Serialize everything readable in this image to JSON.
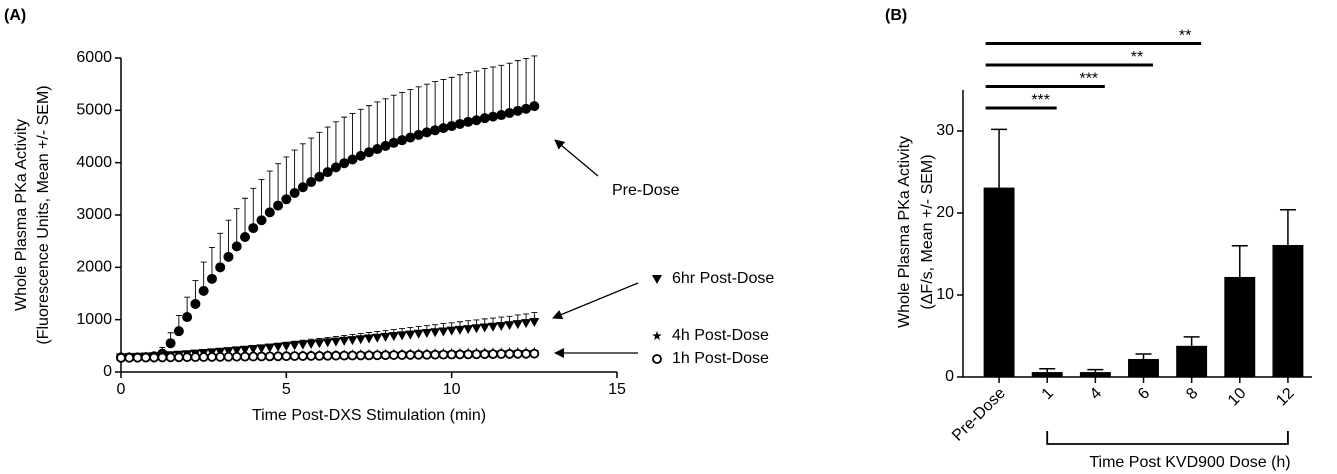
{
  "chart_data": [
    {
      "type": "scatter",
      "panel_label": "(A)",
      "xlabel": "Time Post-DXS Stimulation (min)",
      "ylabel": [
        "Whole Plasma PKa Activity",
        "(Fluorescence Units, Mean +/- SEM)"
      ],
      "xlim": [
        0,
        15
      ],
      "xticks": [
        0,
        5,
        10,
        15
      ],
      "ylim": [
        0,
        6000
      ],
      "yticks": [
        0,
        1000,
        2000,
        3000,
        4000,
        5000,
        6000
      ],
      "x": [
        0,
        0.25,
        0.5,
        0.75,
        1,
        1.25,
        1.5,
        1.75,
        2,
        2.25,
        2.5,
        2.75,
        3,
        3.25,
        3.5,
        3.75,
        4,
        4.25,
        4.5,
        4.75,
        5,
        5.25,
        5.5,
        5.75,
        6,
        6.25,
        6.5,
        6.75,
        7,
        7.25,
        7.5,
        7.75,
        8,
        8.25,
        8.5,
        8.75,
        9,
        9.25,
        9.5,
        9.75,
        10,
        10.25,
        10.5,
        10.75,
        11,
        11.25,
        11.5,
        11.75,
        12,
        12.25,
        12.5
      ],
      "series": [
        {
          "name": "Pre-Dose",
          "color": "#000000",
          "marker": "circle",
          "values": [
            280,
            280,
            280,
            285,
            300,
            350,
            550,
            780,
            1050,
            1300,
            1550,
            1780,
            2000,
            2200,
            2400,
            2580,
            2750,
            2900,
            3050,
            3180,
            3300,
            3420,
            3530,
            3630,
            3730,
            3820,
            3910,
            3990,
            4060,
            4130,
            4200,
            4260,
            4320,
            4380,
            4430,
            4480,
            4530,
            4580,
            4620,
            4660,
            4700,
            4740,
            4780,
            4810,
            4850,
            4880,
            4910,
            4950,
            4990,
            5030,
            5080
          ],
          "errors": [
            20,
            20,
            20,
            30,
            60,
            120,
            200,
            300,
            380,
            450,
            550,
            600,
            650,
            700,
            720,
            740,
            760,
            780,
            790,
            800,
            810,
            820,
            830,
            840,
            850,
            860,
            870,
            880,
            880,
            890,
            890,
            900,
            900,
            910,
            910,
            920,
            920,
            920,
            930,
            930,
            930,
            940,
            940,
            940,
            950,
            950,
            950,
            950,
            960,
            960,
            960
          ]
        },
        {
          "name": "6hr Post-Dose",
          "color": "#000000",
          "marker": "triangle-down",
          "values": [
            280,
            285,
            290,
            295,
            300,
            310,
            320,
            330,
            340,
            352,
            364,
            376,
            388,
            400,
            413,
            426,
            439,
            452,
            466,
            480,
            494,
            508,
            522,
            536,
            550,
            565,
            580,
            595,
            610,
            625,
            640,
            655,
            670,
            685,
            700,
            715,
            730,
            745,
            760,
            775,
            790,
            805,
            820,
            835,
            850,
            865,
            880,
            895,
            915,
            935,
            955
          ],
          "errors": [
            10,
            10,
            10,
            10,
            10,
            15,
            20,
            20,
            25,
            30,
            30,
            35,
            40,
            45,
            50,
            55,
            60,
            60,
            65,
            70,
            75,
            80,
            85,
            90,
            90,
            95,
            100,
            100,
            105,
            110,
            115,
            120,
            120,
            125,
            130,
            135,
            140,
            140,
            145,
            150,
            150,
            155,
            160,
            160,
            165,
            165,
            170,
            170,
            175,
            175,
            180
          ]
        },
        {
          "name": "4h Post-Dose",
          "color": "#000000",
          "marker": "star",
          "values": [
            280,
            282,
            284,
            287,
            289,
            291,
            293,
            295,
            298,
            300,
            302,
            304,
            306,
            309,
            311,
            313,
            315,
            317,
            320,
            322,
            324,
            326,
            328,
            331,
            333,
            335,
            337,
            339,
            342,
            344,
            346,
            348,
            350,
            353,
            355,
            357,
            359,
            361,
            364,
            366,
            368,
            370,
            372,
            375,
            377,
            379,
            381,
            383,
            386,
            388,
            390
          ]
        },
        {
          "name": "1h Post-Dose",
          "color": "#000000",
          "marker": "circle-open",
          "values": [
            270,
            272,
            273,
            275,
            276,
            278,
            280,
            281,
            283,
            284,
            286,
            288,
            289,
            291,
            292,
            294,
            296,
            297,
            299,
            300,
            302,
            304,
            305,
            307,
            308,
            310,
            312,
            313,
            315,
            316,
            318,
            320,
            321,
            323,
            324,
            326,
            328,
            329,
            331,
            332,
            334,
            336,
            337,
            339,
            340,
            342,
            344,
            345,
            347,
            348,
            350
          ]
        }
      ]
    },
    {
      "type": "bar",
      "panel_label": "(B)",
      "xlabel": "Time Post KVD900 Dose (h)",
      "xlabel_bracket": [
        "1",
        "12"
      ],
      "ylabel": [
        "Whole Plasma PKa Activity",
        "(ΔF/s, Mean +/- SEM)"
      ],
      "categories": [
        "Pre-Dose",
        "1",
        "4",
        "6",
        "8",
        "10",
        "12"
      ],
      "values": [
        23.1,
        0.6,
        0.6,
        2.2,
        3.8,
        12.2,
        16.1
      ],
      "errors": [
        7.1,
        0.4,
        0.3,
        0.6,
        1.1,
        3.8,
        4.3
      ],
      "color": "#000000",
      "ylim": [
        0,
        35
      ],
      "yticks": [
        0,
        10,
        20,
        30
      ],
      "comparisons": [
        {
          "groups": [
            "Pre-Dose",
            "1"
          ],
          "label": "***"
        },
        {
          "groups": [
            "Pre-Dose",
            "4"
          ],
          "label": "***"
        },
        {
          "groups": [
            "Pre-Dose",
            "6"
          ],
          "label": "**"
        },
        {
          "groups": [
            "Pre-Dose",
            "8"
          ],
          "label": "**"
        }
      ]
    }
  ]
}
